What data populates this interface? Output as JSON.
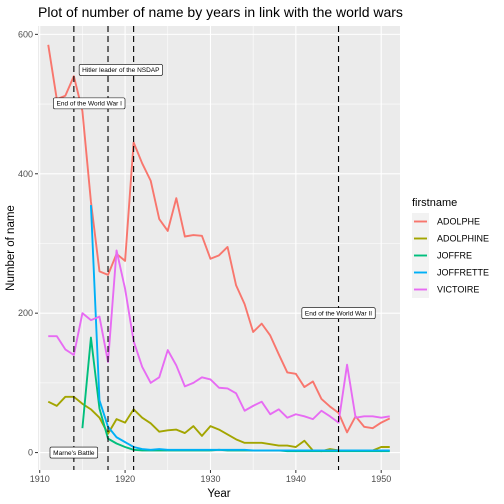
{
  "chart_data": {
    "type": "line",
    "title": "Plot of number of name by years in link with the world wars",
    "xlabel": "Year",
    "ylabel": "Number of name",
    "xlim": [
      1909.8,
      1952.2
    ],
    "ylim": [
      -25,
      612
    ],
    "x_ticks": [
      1910,
      1920,
      1930,
      1940,
      1950
    ],
    "y_ticks": [
      0,
      200,
      400,
      600
    ],
    "grid": true,
    "legend": {
      "title": "firstname",
      "position": "right"
    },
    "series": [
      {
        "name": "ADOLPHE",
        "color": "#F8766D",
        "x": [
          1911,
          1912,
          1913,
          1914,
          1915,
          1916,
          1917,
          1918,
          1919,
          1920,
          1921,
          1922,
          1923,
          1924,
          1925,
          1926,
          1927,
          1928,
          1929,
          1930,
          1931,
          1932,
          1933,
          1934,
          1935,
          1936,
          1937,
          1938,
          1939,
          1940,
          1941,
          1942,
          1943,
          1944,
          1945,
          1946,
          1947,
          1948,
          1949,
          1950,
          1951
        ],
        "y": [
          585,
          507,
          512,
          540,
          490,
          360,
          260,
          255,
          285,
          275,
          445,
          415,
          390,
          335,
          318,
          365,
          310,
          312,
          311,
          278,
          283,
          295,
          240,
          213,
          173,
          185,
          168,
          141,
          115,
          113,
          94,
          102,
          77,
          66,
          57,
          29,
          52,
          37,
          35,
          43,
          49
        ]
      },
      {
        "name": "ADOLPHINE",
        "color": "#A3A500",
        "x": [
          1911,
          1912,
          1913,
          1914,
          1915,
          1916,
          1917,
          1918,
          1919,
          1920,
          1921,
          1922,
          1923,
          1924,
          1925,
          1926,
          1927,
          1928,
          1929,
          1930,
          1931,
          1932,
          1933,
          1934,
          1935,
          1936,
          1937,
          1938,
          1939,
          1940,
          1941,
          1942,
          1943,
          1944,
          1945,
          1946,
          1947,
          1948,
          1949,
          1950,
          1951
        ],
        "y": [
          73,
          67,
          80,
          80,
          70,
          62,
          50,
          27,
          48,
          43,
          62,
          50,
          42,
          30,
          32,
          33,
          28,
          38,
          24,
          38,
          33,
          26,
          19,
          14,
          14,
          14,
          12,
          10,
          10,
          8,
          17,
          3,
          2,
          5,
          3,
          3,
          3,
          3,
          3,
          8,
          8
        ]
      },
      {
        "name": "JOFFRE",
        "color": "#00BF7D",
        "x": [
          1915,
          1916,
          1917,
          1918,
          1919,
          1920,
          1921,
          1922,
          1923,
          1924,
          1925,
          1926,
          1927,
          1928,
          1929,
          1930,
          1931,
          1932,
          1933,
          1934,
          1935,
          1936,
          1937,
          1938,
          1939,
          1940,
          1941,
          1942,
          1943,
          1944,
          1945,
          1946,
          1947,
          1948,
          1949,
          1950,
          1951
        ],
        "y": [
          35,
          165,
          63,
          20,
          13,
          8,
          4,
          3,
          3,
          3,
          3,
          3,
          3,
          3,
          3,
          3,
          4,
          3,
          3,
          3,
          3,
          3,
          3,
          3,
          2,
          2,
          2,
          2,
          2,
          2,
          2,
          2,
          2,
          2,
          2,
          2,
          2
        ]
      },
      {
        "name": "JOFFRETTE",
        "color": "#00B0F6",
        "x": [
          1916,
          1917,
          1918,
          1919,
          1920,
          1921,
          1922,
          1923,
          1924,
          1925,
          1926,
          1927,
          1928,
          1929,
          1930,
          1931,
          1932,
          1933,
          1934,
          1935,
          1936,
          1937,
          1938,
          1939,
          1940,
          1941,
          1942,
          1943,
          1944,
          1945,
          1946,
          1947,
          1948,
          1949,
          1950,
          1951
        ],
        "y": [
          355,
          75,
          37,
          22,
          15,
          8,
          5,
          4,
          5,
          4,
          4,
          4,
          4,
          4,
          4,
          4,
          4,
          4,
          4,
          3,
          3,
          3,
          3,
          3,
          3,
          3,
          3,
          3,
          3,
          3,
          3,
          3,
          3,
          3,
          3,
          3
        ]
      },
      {
        "name": "VICTOIRE",
        "color": "#E76BF3",
        "x": [
          1911,
          1912,
          1913,
          1914,
          1915,
          1916,
          1917,
          1918,
          1919,
          1920,
          1921,
          1922,
          1923,
          1924,
          1925,
          1926,
          1927,
          1928,
          1929,
          1930,
          1931,
          1932,
          1933,
          1934,
          1935,
          1936,
          1937,
          1938,
          1939,
          1940,
          1941,
          1942,
          1943,
          1944,
          1945,
          1946,
          1947,
          1948,
          1949,
          1950,
          1951
        ],
        "y": [
          167,
          167,
          148,
          140,
          200,
          190,
          195,
          130,
          290,
          235,
          160,
          123,
          100,
          108,
          147,
          125,
          95,
          100,
          108,
          105,
          93,
          92,
          85,
          60,
          67,
          73,
          55,
          62,
          50,
          55,
          52,
          48,
          60,
          52,
          43,
          126,
          50,
          52,
          52,
          50,
          52
        ]
      }
    ],
    "vlines": [
      1914,
      1918,
      1921,
      1945
    ],
    "annotations": [
      {
        "text": "Hitler leader of the NSDAP",
        "x": 1919.5,
        "y": 549
      },
      {
        "text": "End of the World War I",
        "x": 1915.8,
        "y": 501
      },
      {
        "text": "End of the World War II",
        "x": 1945,
        "y": 200
      },
      {
        "text": "Marne's Battle",
        "x": 1914,
        "y": 0
      }
    ]
  }
}
